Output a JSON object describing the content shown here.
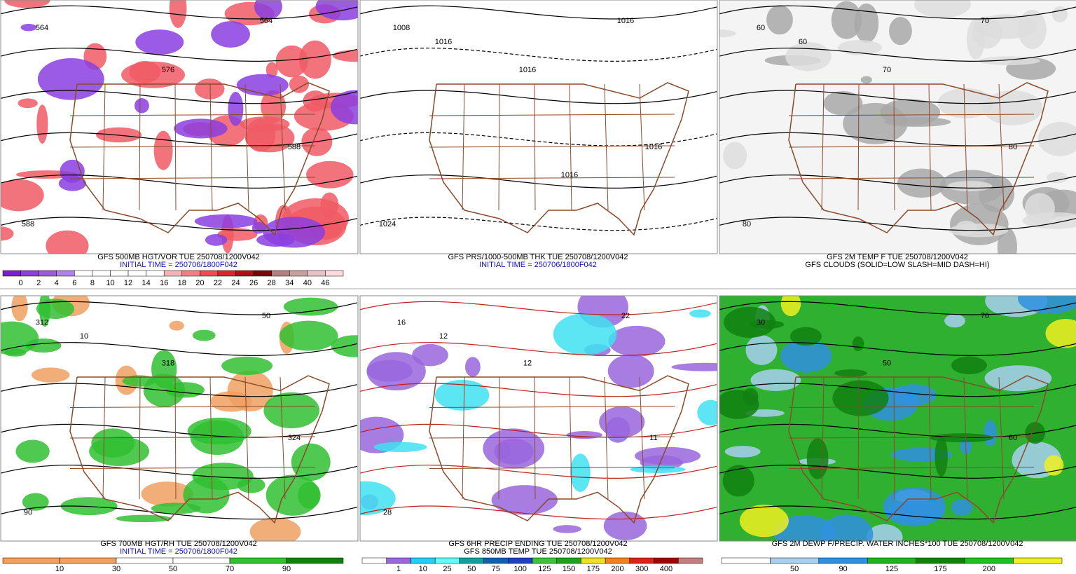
{
  "panels": [
    {
      "captions": [
        {
          "text": "GFS 500MB HGT/VOR TUE 250708/1200V042",
          "color": "#000000"
        },
        {
          "text": "INITIAL TIME = 250706/1800F042",
          "color": "#1010c0"
        }
      ],
      "map_labels": [
        "564",
        "576",
        "588",
        "564",
        "588"
      ],
      "colorbar": {
        "colors": [
          "#7a1fd6",
          "#8b3ee0",
          "#9a5ae6",
          "#b07fee",
          "#ffffff",
          "#ffffff",
          "#ffffff",
          "#ffffff",
          "#ffffff",
          "#ffb0b8",
          "#ff7a85",
          "#f04a55",
          "#d8262f",
          "#b01018",
          "#800008",
          "#b08080",
          "#c8a0a0",
          "#e8c0c8",
          "#ffd8e0"
        ],
        "labels": [
          0,
          2,
          4,
          6,
          8,
          10,
          12,
          14,
          16,
          18,
          20,
          22,
          24,
          26,
          28,
          34,
          40,
          46
        ]
      }
    },
    {
      "captions": [
        {
          "text": "GFS PRS/1000-500MB THK TUE 250708/1200V042",
          "color": "#000000"
        },
        {
          "text": "INITIAL TIME = 250706/1800F042",
          "color": "#1010c0"
        }
      ],
      "map_labels": [
        "1008",
        "1016",
        "1016",
        "1016",
        "1024",
        "1016",
        "1016"
      ]
    },
    {
      "captions": [
        {
          "text": "GFS 2M TEMP F TUE 250708/1200V042",
          "color": "#000000"
        },
        {
          "text": "GFS CLOUDS (SOLID=LOW SLASH=MID DASH=HI)",
          "color": "#000000"
        }
      ],
      "map_labels": [
        "60",
        "70",
        "80",
        "70",
        "80",
        "60"
      ]
    },
    {
      "captions": [
        {
          "text": "GFS 700MB HGT/RH TUE 250708/1200V042",
          "color": "#000000"
        },
        {
          "text": "INITIAL TIME = 250706/1800F042",
          "color": "#1010c0"
        }
      ],
      "map_labels": [
        "312",
        "318",
        "324",
        "50",
        "90",
        "10"
      ],
      "colorbar": {
        "colors": [
          "#f0a060",
          "#f0a060",
          "#ffffff",
          "#ffffff",
          "#30c030",
          "#108010"
        ],
        "labels": [
          10,
          30,
          50,
          70,
          90
        ]
      }
    },
    {
      "captions": [
        {
          "text": "GFS 6HR PRECIP ENDING TUE 250708/1200V042",
          "color": "#000000"
        },
        {
          "text": "GFS 850MB TEMP TUE 250708/1200V042",
          "color": "#000000"
        }
      ],
      "map_labels": [
        "16",
        "12",
        "11",
        "22",
        "28",
        "12"
      ],
      "colorbar": {
        "colors": [
          "#ffffff",
          "#9966dd",
          "#20d0f0",
          "#60ffff",
          "#10a0a0",
          "#1060b0",
          "#2040c0",
          "#40c040",
          "#20a020",
          "#f0e020",
          "#f08020",
          "#e02020",
          "#a00000",
          "#c08080"
        ],
        "labels": [
          1,
          10,
          25,
          50,
          75,
          100,
          125,
          150,
          175,
          200,
          300,
          400
        ]
      }
    },
    {
      "captions": [
        {
          "text": "GFS 2M DEWP F/PRECIP. WATER INCHES*100 TUE 250708/1200V042",
          "color": "#000000"
        }
      ],
      "map_labels": [
        "30",
        "50",
        "60",
        "70"
      ],
      "colorbar": {
        "colors": [
          "#ffffff",
          "#a8d0f0",
          "#3090e0",
          "#20b020",
          "#108010",
          "#20c020",
          "#f0f020"
        ],
        "labels": [
          50,
          90,
          125,
          175,
          200
        ]
      }
    }
  ]
}
